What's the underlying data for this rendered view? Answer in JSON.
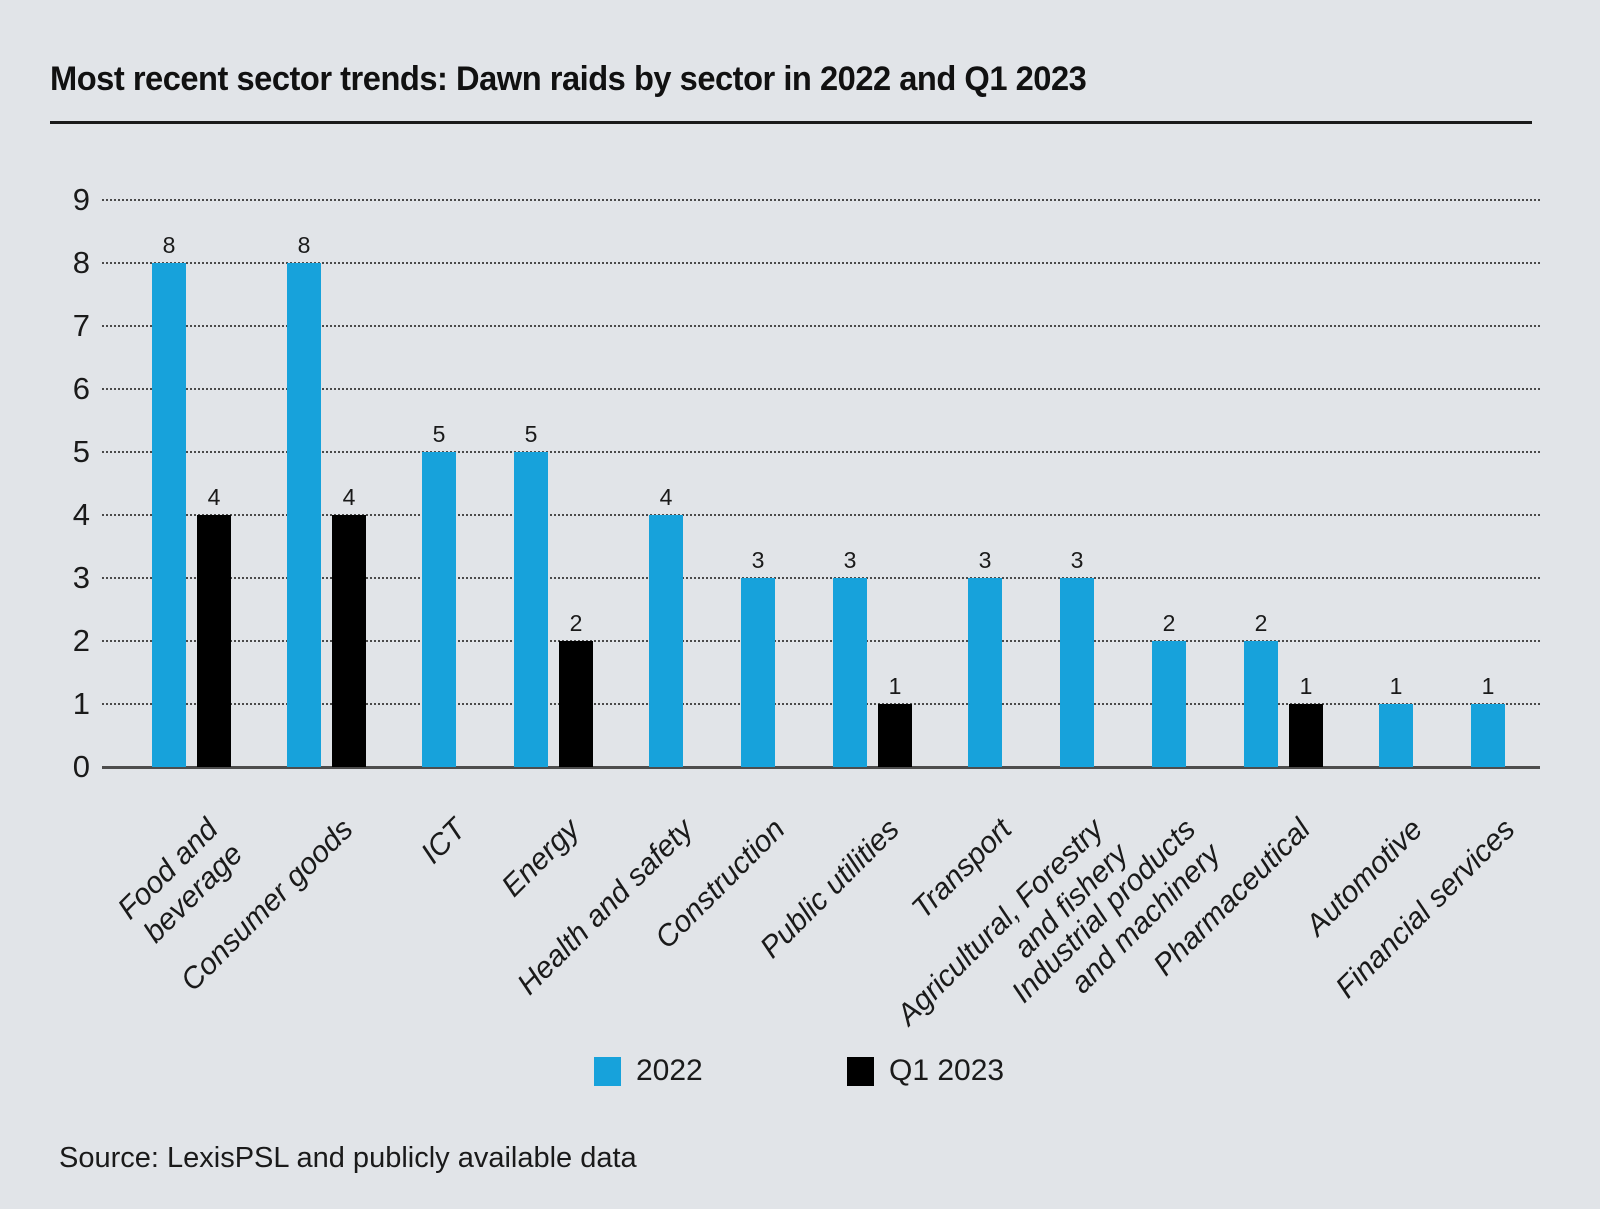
{
  "page": {
    "title": "Most recent sector trends: Dawn raids by sector in 2022 and Q1 2023",
    "source_note": "Source: LexisPSL and publicly available data"
  },
  "colors": {
    "background": "#E1E4E8",
    "series_2022": "#17A2DB",
    "series_q1_2023": "#000000",
    "text": "#1A1A1A",
    "gridline": "#4A4A4A",
    "axis_line": "#4D4D4D"
  },
  "legend": {
    "items": [
      {
        "label": "2022",
        "color": "#17A2DB"
      },
      {
        "label": "Q1 2023",
        "color": "#000000"
      }
    ]
  },
  "chart_data": {
    "type": "bar",
    "title": "Most recent sector trends: Dawn raids by sector in 2022 and Q1 2023",
    "categories": [
      "Food and beverage",
      "Consumer goods",
      "ICT",
      "Energy",
      "Health and safety",
      "Construction",
      "Public utilities",
      "Transport",
      "Agricultural, Forestry\nand fishery",
      "Industrial products\nand machinery",
      "Pharmaceutical",
      "Automotive",
      "Financial services"
    ],
    "series": [
      {
        "name": "2022",
        "color": "#17A2DB",
        "values": [
          8,
          8,
          5,
          5,
          4,
          3,
          3,
          3,
          3,
          2,
          2,
          1,
          1
        ]
      },
      {
        "name": "Q1 2023",
        "color": "#000000",
        "values": [
          4,
          4,
          null,
          2,
          null,
          null,
          1,
          null,
          null,
          null,
          1,
          null,
          null
        ]
      }
    ],
    "xlabel": "",
    "ylabel": "",
    "ylim": [
      0,
      9
    ],
    "yticks": [
      0,
      1,
      2,
      3,
      4,
      5,
      6,
      7,
      8,
      9
    ],
    "grid": "horizontal-dotted",
    "bar_value_labels": true,
    "legend_position": "bottom"
  }
}
